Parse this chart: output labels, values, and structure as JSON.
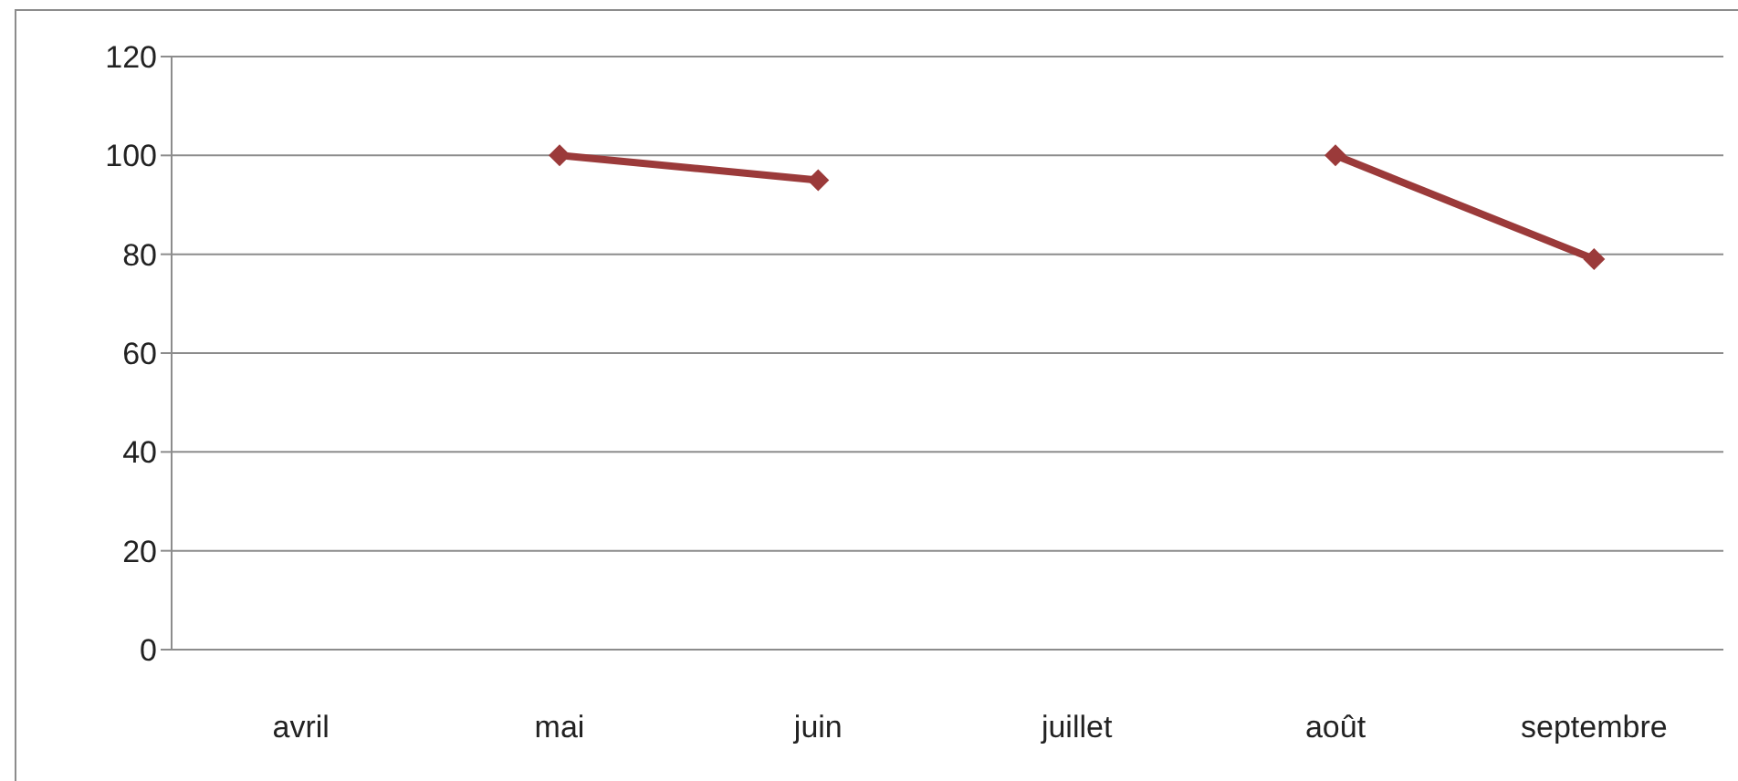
{
  "chart_data": {
    "type": "line",
    "categories": [
      "avril",
      "mai",
      "juin",
      "juillet",
      "août",
      "septembre"
    ],
    "series": [
      {
        "color": "#9b3a3a",
        "values": [
          null,
          100,
          95,
          null,
          100,
          79
        ]
      }
    ],
    "ylim": [
      0,
      120
    ],
    "yticks": [
      0,
      20,
      40,
      60,
      80,
      100,
      120
    ],
    "grid": "y",
    "marker": "diamond",
    "line_style": "solid"
  }
}
